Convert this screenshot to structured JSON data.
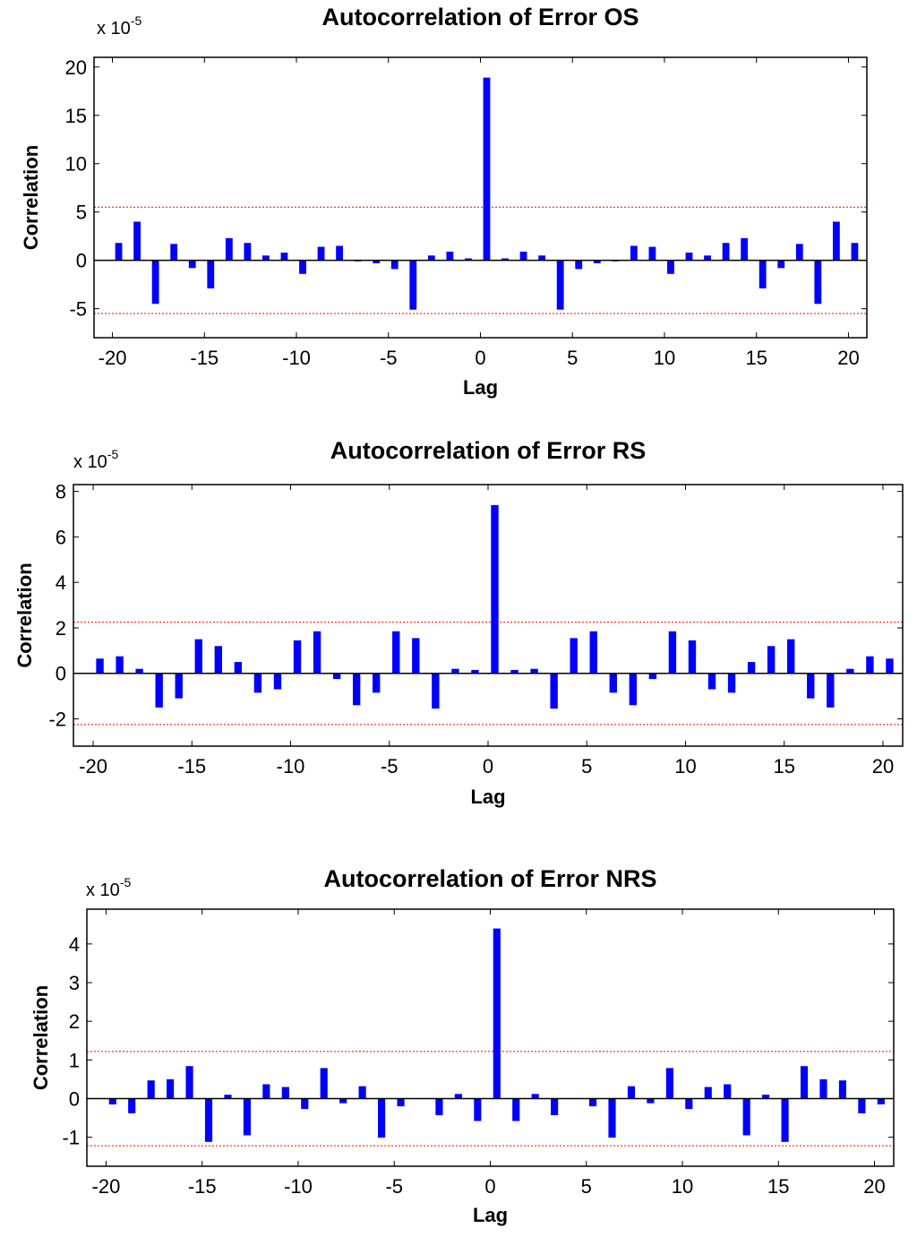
{
  "chart_data": [
    {
      "type": "bar",
      "title": "Autocorrelation of Error OS",
      "xlabel": "Lag",
      "ylabel": "Correlation",
      "y_multiplier": "x 10",
      "y_exponent": "-5",
      "xlim": [
        -21,
        21
      ],
      "ylim": [
        -8,
        21
      ],
      "xticks": [
        -20,
        -15,
        -10,
        -5,
        0,
        5,
        10,
        15,
        20
      ],
      "yticks": [
        -5,
        0,
        5,
        10,
        15,
        20
      ],
      "confidence_bound": 5.5,
      "bar_color": "#0000ff",
      "bound_color": "#ff0000",
      "x": [
        -20,
        -19,
        -18,
        -17,
        -16,
        -15,
        -14,
        -13,
        -12,
        -11,
        -10,
        -9,
        -8,
        -7,
        -6,
        -5,
        -4,
        -3,
        -2,
        -1,
        0,
        1,
        2,
        3,
        4,
        5,
        6,
        7,
        8,
        9,
        10,
        11,
        12,
        13,
        14,
        15,
        16,
        17,
        18,
        19,
        20
      ],
      "values": [
        1.8,
        4.0,
        -4.5,
        1.7,
        -0.8,
        -2.9,
        2.3,
        1.8,
        0.5,
        0.8,
        -1.4,
        1.4,
        1.5,
        -0.1,
        -0.3,
        -0.9,
        -5.1,
        0.5,
        0.9,
        0.2,
        18.9,
        0.2,
        0.9,
        0.5,
        -5.1,
        -0.9,
        -0.3,
        -0.1,
        1.5,
        1.4,
        -1.4,
        0.8,
        0.5,
        1.8,
        2.3,
        -2.9,
        -0.8,
        1.7,
        -4.5,
        4.0,
        1.8
      ]
    },
    {
      "type": "bar",
      "title": "Autocorrelation of Error RS",
      "xlabel": "Lag",
      "ylabel": "Correlation",
      "y_multiplier": "x 10",
      "y_exponent": "-5",
      "xlim": [
        -21,
        21
      ],
      "ylim": [
        -3.2,
        8.3
      ],
      "xticks": [
        -20,
        -15,
        -10,
        -5,
        0,
        5,
        10,
        15,
        20
      ],
      "yticks": [
        -2,
        0,
        2,
        4,
        6,
        8
      ],
      "confidence_bound": 2.25,
      "bar_color": "#0000ff",
      "bound_color": "#ff0000",
      "x": [
        -20,
        -19,
        -18,
        -17,
        -16,
        -15,
        -14,
        -13,
        -12,
        -11,
        -10,
        -9,
        -8,
        -7,
        -6,
        -5,
        -4,
        -3,
        -2,
        -1,
        0,
        1,
        2,
        3,
        4,
        5,
        6,
        7,
        8,
        9,
        10,
        11,
        12,
        13,
        14,
        15,
        16,
        17,
        18,
        19,
        20
      ],
      "values": [
        0.65,
        0.75,
        0.2,
        -1.5,
        -1.1,
        1.5,
        1.2,
        0.5,
        -0.85,
        -0.7,
        1.45,
        1.85,
        -0.25,
        -1.4,
        -0.85,
        1.85,
        1.55,
        -1.55,
        0.2,
        0.15,
        7.4,
        0.15,
        0.2,
        -1.55,
        1.55,
        1.85,
        -0.85,
        -1.4,
        -0.25,
        1.85,
        1.45,
        -0.7,
        -0.85,
        0.5,
        1.2,
        1.5,
        -1.1,
        -1.5,
        0.2,
        0.75,
        0.65
      ]
    },
    {
      "type": "bar",
      "title": "Autocorrelation of Error NRS",
      "xlabel": "Lag",
      "ylabel": "Correlation",
      "y_multiplier": "x 10",
      "y_exponent": "-5",
      "xlim": [
        -21,
        21
      ],
      "ylim": [
        -1.75,
        4.9
      ],
      "xticks": [
        -20,
        -15,
        -10,
        -5,
        0,
        5,
        10,
        15,
        20
      ],
      "yticks": [
        -1,
        0,
        1,
        2,
        3,
        4
      ],
      "confidence_bound": 1.22,
      "bar_color": "#0000ff",
      "bound_color": "#ff0000",
      "x": [
        -20,
        -19,
        -18,
        -17,
        -16,
        -15,
        -14,
        -13,
        -12,
        -11,
        -10,
        -9,
        -8,
        -7,
        -6,
        -5,
        -4,
        -3,
        -2,
        -1,
        0,
        1,
        2,
        3,
        4,
        5,
        6,
        7,
        8,
        9,
        10,
        11,
        12,
        13,
        14,
        15,
        16,
        17,
        18,
        19,
        20
      ],
      "values": [
        -0.15,
        -0.38,
        0.47,
        0.5,
        0.84,
        -1.12,
        0.1,
        -0.95,
        0.37,
        0.3,
        -0.27,
        0.79,
        -0.12,
        0.32,
        -1.01,
        -0.2,
        0.0,
        -0.43,
        0.12,
        -0.58,
        4.4,
        -0.58,
        0.12,
        -0.43,
        0.0,
        -0.2,
        -1.01,
        0.32,
        -0.12,
        0.79,
        -0.27,
        0.3,
        0.37,
        -0.95,
        0.1,
        -1.12,
        0.84,
        0.5,
        0.47,
        -0.38,
        -0.15
      ]
    }
  ]
}
